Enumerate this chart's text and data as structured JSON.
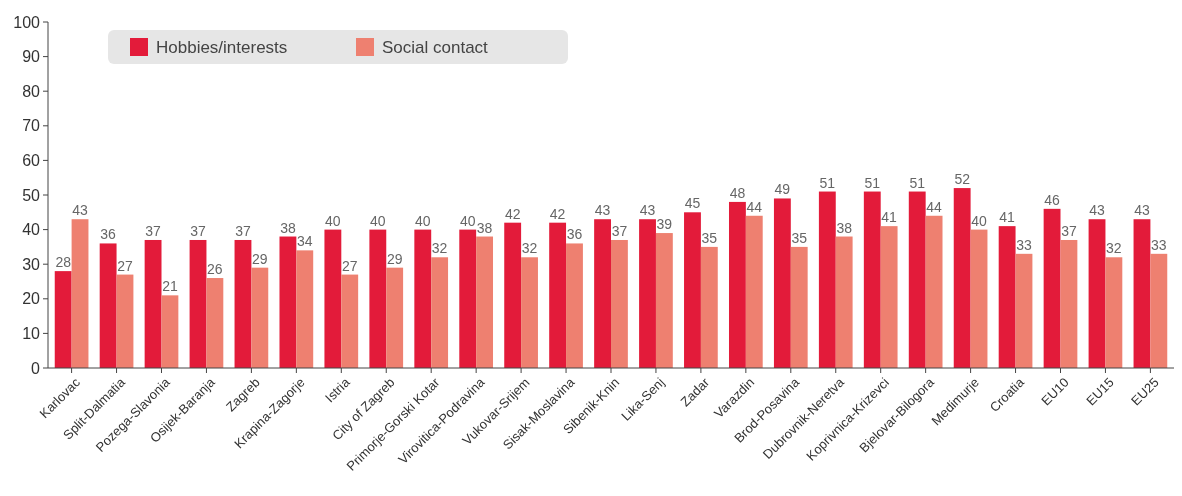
{
  "chart_data": {
    "type": "bar",
    "categories": [
      "Karlovac",
      "Split-Dalmatia",
      "Pozega-Slavonia",
      "Osijek-Baranja",
      "Zagreb",
      "Krapina-Zagorje",
      "Istria",
      "City of Zagreb",
      "Primorje-Gorski Kotar",
      "Virovitica-Podravina",
      "Vukovar-Srijem",
      "Sisak-Moslavina",
      "Sibenik-Knin",
      "Lika-Senj",
      "Zadar",
      "Varazdin",
      "Brod-Posavina",
      "Dubrovnik-Neretva",
      "Koprivnica-Krizevci",
      "Bjelovar-Bilogora",
      "Medimurje",
      "Croatia",
      "EU10",
      "EU15",
      "EU25"
    ],
    "series": [
      {
        "name": "Hobbies/interests",
        "color": "#e31b3a",
        "values": [
          28,
          36,
          37,
          37,
          37,
          38,
          40,
          40,
          40,
          40,
          42,
          42,
          43,
          43,
          45,
          48,
          49,
          51,
          51,
          51,
          52,
          41,
          46,
          43,
          43
        ]
      },
      {
        "name": "Social contact",
        "color": "#ee8070",
        "values": [
          43,
          27,
          21,
          26,
          29,
          34,
          27,
          29,
          32,
          38,
          32,
          36,
          37,
          39,
          35,
          44,
          35,
          38,
          41,
          44,
          40,
          33,
          37,
          32,
          33
        ]
      }
    ],
    "ylim": [
      0,
      100
    ],
    "yticks": [
      0,
      10,
      20,
      30,
      40,
      50,
      60,
      70,
      80,
      90,
      100
    ],
    "data_labels": true,
    "legend": "top left",
    "grid": false
  }
}
